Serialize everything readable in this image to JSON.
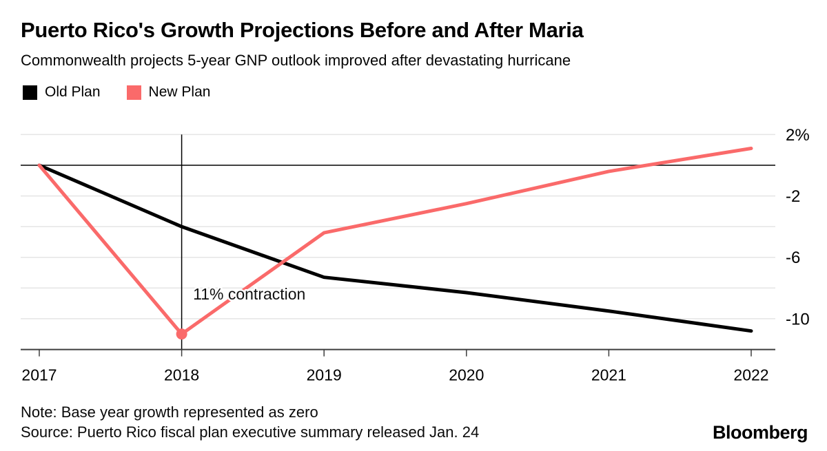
{
  "header": {
    "title": "Puerto Rico's Growth Projections Before and After Maria",
    "subtitle": "Commonwealth projects 5-year GNP outlook improved after devastating hurricane"
  },
  "legend": {
    "items": [
      {
        "label": "Old Plan",
        "color": "#000000"
      },
      {
        "label": "New Plan",
        "color": "#fa6a6a"
      }
    ]
  },
  "chart_data": {
    "type": "line",
    "title": "Puerto Rico's Growth Projections Before and After Maria",
    "xlabel": "",
    "ylabel": "",
    "categories": [
      2017,
      2018,
      2019,
      2020,
      2021,
      2022
    ],
    "series": [
      {
        "name": "Old Plan",
        "color": "#000000",
        "values": [
          0,
          -4,
          -7.3,
          -8.3,
          -9.5,
          -10.8
        ]
      },
      {
        "name": "New Plan",
        "color": "#fa6a6a",
        "values": [
          0,
          -11,
          -4.4,
          -2.5,
          -0.4,
          1.1
        ],
        "marker": {
          "x": 2018,
          "y": -11
        }
      }
    ],
    "xlim": [
      2017,
      2022
    ],
    "ylim": [
      -12,
      2
    ],
    "ytick_values": [
      2,
      0,
      -2,
      -4,
      -6,
      -8,
      -10
    ],
    "ytick_labels": [
      {
        "value": 2,
        "label": "2%"
      },
      {
        "value": -2,
        "label": "-2"
      },
      {
        "value": -6,
        "label": "-6"
      },
      {
        "value": -10,
        "label": "-10"
      }
    ],
    "grid": true,
    "zero_line": true,
    "event_line_x": 2018,
    "annotation": {
      "text": "11% contraction",
      "x": 2018.08,
      "y": -8.4
    },
    "legend_position": "top-left"
  },
  "footer": {
    "note": "Note: Base year growth represented as zero",
    "source": "Source: Puerto Rico fiscal plan executive summary released Jan. 24",
    "brand": "Bloomberg"
  },
  "colors": {
    "accent": "#fa6a6a",
    "grid": "#e4e4e4",
    "axis": "#3d3d3d",
    "zero_line": "#000000",
    "text": "#000000"
  }
}
